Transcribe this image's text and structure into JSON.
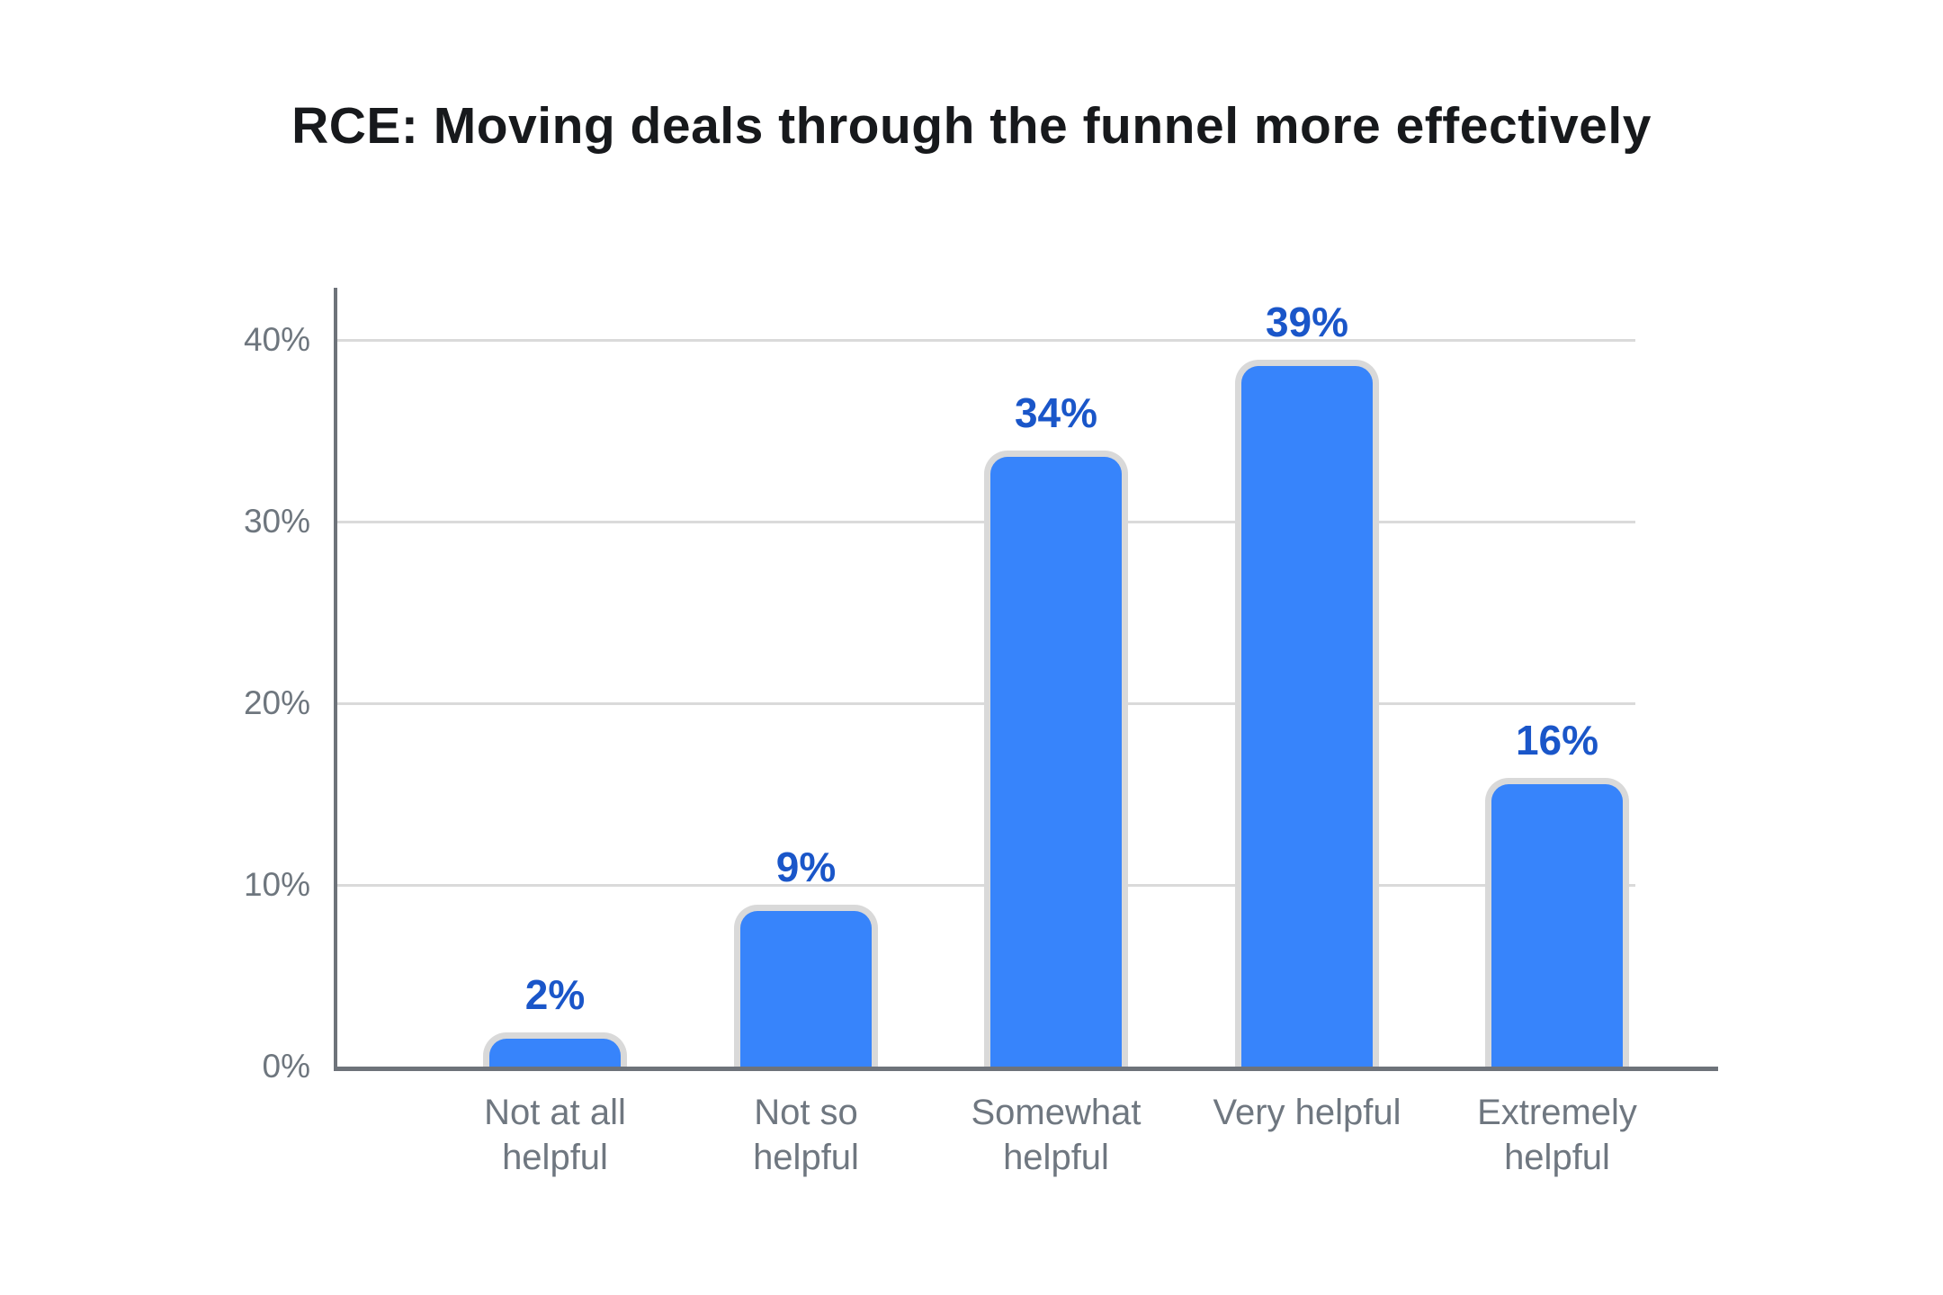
{
  "title": "RCE: Moving deals through the funnel more effectively",
  "chart_data": {
    "type": "bar",
    "title": "RCE: Moving deals through the funnel more effectively",
    "categories": [
      "Not at all helpful",
      "Not so helpful",
      "Somewhat helpful",
      "Very helpful",
      "Extremely helpful"
    ],
    "values": [
      2,
      9,
      34,
      39,
      16
    ],
    "value_labels": [
      "2%",
      "9%",
      "34%",
      "39%",
      "16%"
    ],
    "xlabel": "",
    "ylabel": "",
    "y_ticks": [
      {
        "value": 0,
        "label": "0%"
      },
      {
        "value": 10,
        "label": "10%"
      },
      {
        "value": 20,
        "label": "20%"
      },
      {
        "value": 30,
        "label": "30%"
      },
      {
        "value": 40,
        "label": "40%"
      }
    ],
    "ylim": [
      0,
      43
    ],
    "grid": "horizontal",
    "legend_position": "none"
  },
  "colors": {
    "background": "#ffffff",
    "title_text": "#17191c",
    "bar_fill": "#3784fb",
    "bar_border": "#d9d9d9",
    "value_label": "#1a56c9",
    "axis_line": "#6e737a",
    "tick_label": "#6e767e",
    "category_label": "#6f7780",
    "gridline": "#dadada"
  }
}
